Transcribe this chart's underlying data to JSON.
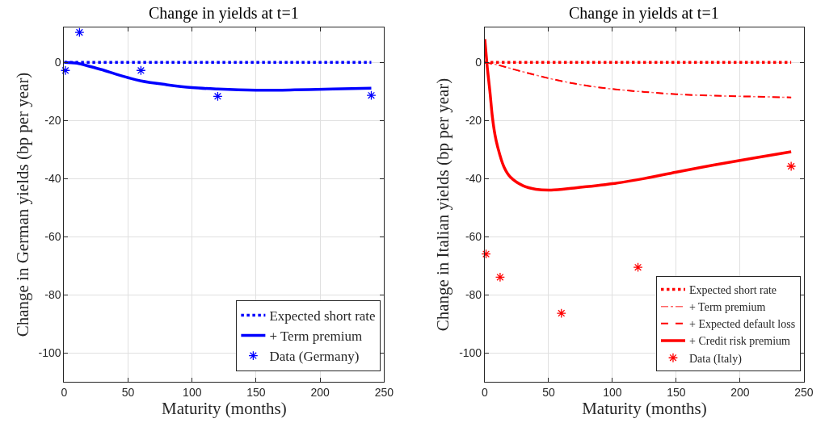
{
  "chart_data": [
    {
      "type": "line",
      "title": "Change in yields at t=1",
      "xlabel": "Maturity (months)",
      "ylabel": "Change in German yields (bp per year)",
      "xlim": [
        0,
        250
      ],
      "xticks": [
        0,
        50,
        100,
        150,
        200,
        250
      ],
      "ylim": [
        -110,
        12
      ],
      "yticks": [
        -100,
        -80,
        -60,
        -40,
        -20,
        0
      ],
      "grid": true,
      "legend": "bottom right",
      "series": [
        {
          "name": "Expected short rate",
          "color": "#0000ff",
          "line_style": "dotted",
          "x": [
            0,
            240
          ],
          "values": [
            0,
            0
          ]
        },
        {
          "name": "+ Term premium",
          "color": "#0000ff",
          "line_style": "solid",
          "x": [
            0,
            10,
            20,
            30,
            40,
            50,
            60,
            80,
            100,
            120,
            150,
            180,
            210,
            240
          ],
          "values": [
            0,
            -0.3,
            -1.4,
            -2.6,
            -4.0,
            -5.3,
            -6.4,
            -7.7,
            -8.7,
            -9.2,
            -9.6,
            -9.5,
            -9.2,
            -8.9
          ]
        },
        {
          "name": "Data (Germany)",
          "color": "#0000ff",
          "type": "scatter",
          "marker": "cross",
          "x": [
            1,
            12,
            60,
            120,
            240
          ],
          "values": [
            -2.8,
            10.3,
            -2.8,
            -11.7,
            -11.4
          ]
        }
      ]
    },
    {
      "type": "line",
      "title": "Change in yields at t=1",
      "xlabel": "Maturity (months)",
      "ylabel": "Change in Italian yields (bp per year)",
      "xlim": [
        0,
        250
      ],
      "xticks": [
        0,
        50,
        100,
        150,
        200,
        250
      ],
      "ylim": [
        -110,
        12
      ],
      "yticks": [
        -100,
        -80,
        -60,
        -40,
        -20,
        0
      ],
      "grid": true,
      "legend": "bottom right",
      "series": [
        {
          "name": "Expected short rate",
          "color": "#ff0000",
          "line_style": "dotted",
          "x": [
            0,
            240
          ],
          "values": [
            0,
            0
          ]
        },
        {
          "name": "+ Term premium",
          "color": "#ff6666",
          "line_style": "dashdot",
          "x": [
            0,
            10,
            25,
            50,
            75,
            100,
            125,
            150,
            180,
            210,
            240
          ],
          "values": [
            0,
            -0.9,
            -2.7,
            -5.5,
            -7.7,
            -9.2,
            -10.2,
            -11.0,
            -11.5,
            -11.8,
            -12.1
          ]
        },
        {
          "name": "+ Expected default loss",
          "color": "#ff0000",
          "line_style": "dashed",
          "x": [
            0,
            10,
            25,
            50,
            75,
            100,
            125,
            150,
            180,
            210,
            240
          ],
          "values": [
            0,
            -0.9,
            -2.7,
            -5.5,
            -7.7,
            -9.2,
            -10.2,
            -11.0,
            -11.5,
            -11.8,
            -12.1
          ]
        },
        {
          "name": "+ Credit risk premium",
          "color": "#ff0000",
          "line_style": "solid",
          "x": [
            0,
            1,
            2,
            4,
            6,
            8,
            10,
            15,
            20,
            30,
            40,
            52,
            70,
            100,
            125,
            150,
            180,
            210,
            240
          ],
          "values": [
            8,
            3,
            -2,
            -10,
            -19,
            -25,
            -29,
            -36,
            -39.5,
            -42.5,
            -43.7,
            -44,
            -43.3,
            -41.8,
            -40,
            -37.8,
            -35.3,
            -33,
            -30.8
          ]
        },
        {
          "name": "Data (Italy)",
          "color": "#ff0000",
          "type": "scatter",
          "marker": "cross",
          "x": [
            1,
            12,
            60,
            120,
            240
          ],
          "values": [
            -66,
            -74,
            -86.4,
            -70.6,
            -35.8
          ]
        }
      ]
    }
  ]
}
